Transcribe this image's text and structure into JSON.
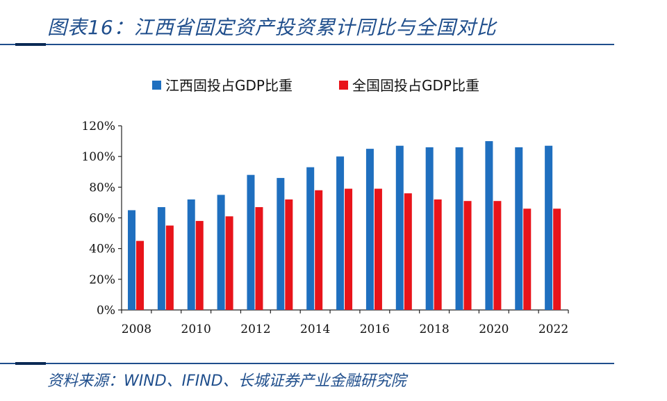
{
  "header": {
    "title": "图表16：江西省固定资产投资累计同比与全国对比"
  },
  "footer": {
    "source": "资料来源：WIND、IFIND、长城证券产业金融研究院"
  },
  "colors": {
    "series_jiangxi": "#1f6fbf",
    "series_national": "#e8141a",
    "accent": "#1f4e8c"
  },
  "chart_data": {
    "type": "bar",
    "title": "",
    "xlabel": "",
    "ylabel": "",
    "categories": [
      "2008",
      "2009",
      "2010",
      "2011",
      "2012",
      "2013",
      "2014",
      "2015",
      "2016",
      "2017",
      "2018",
      "2019",
      "2020",
      "2021",
      "2022"
    ],
    "x_tick_labels": [
      "2008",
      "2010",
      "2012",
      "2014",
      "2016",
      "2018",
      "2020",
      "2022"
    ],
    "y_tick_labels": [
      "0%",
      "20%",
      "40%",
      "60%",
      "80%",
      "100%",
      "120%"
    ],
    "ylim": [
      0,
      120
    ],
    "y_ticks": [
      0,
      20,
      40,
      60,
      80,
      100,
      120
    ],
    "legend_position": "top-center",
    "grid": false,
    "series": [
      {
        "name": "江西固投占GDP比重",
        "color": "#1f6fbf",
        "values": [
          65,
          67,
          72,
          75,
          88,
          86,
          93,
          100,
          105,
          107,
          106,
          106,
          110,
          106,
          107
        ]
      },
      {
        "name": "全国固投占GDP比重",
        "color": "#e8141a",
        "values": [
          45,
          55,
          58,
          61,
          67,
          72,
          78,
          79,
          79,
          76,
          72,
          71,
          71,
          66,
          66
        ]
      }
    ]
  }
}
